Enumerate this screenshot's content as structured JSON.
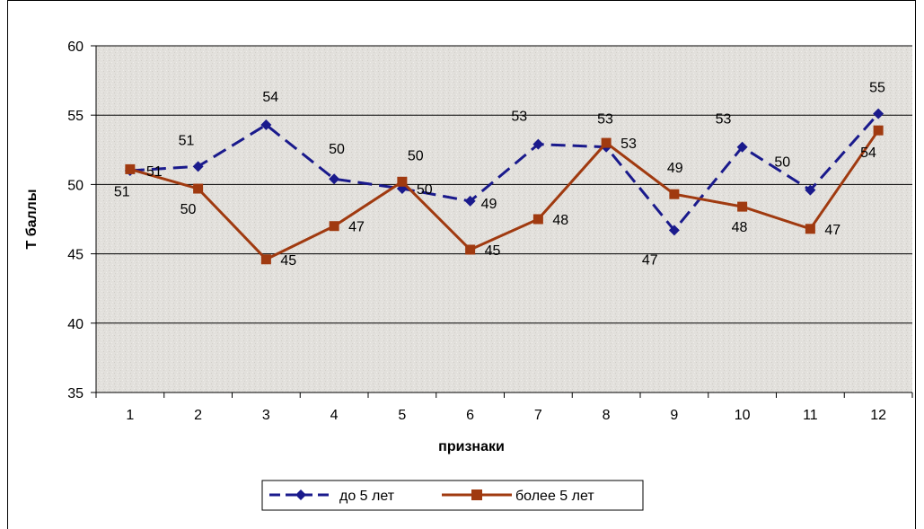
{
  "chart_data": {
    "type": "line",
    "categories": [
      "1",
      "2",
      "3",
      "4",
      "5",
      "6",
      "7",
      "8",
      "9",
      "10",
      "11",
      "12"
    ],
    "xlabel": "признаки",
    "ylabel": "Т баллы",
    "ylim": [
      35,
      60
    ],
    "yticks": [
      "35",
      "40",
      "45",
      "50",
      "55",
      "60"
    ],
    "grid": true,
    "legend_position": "bottom",
    "series": [
      {
        "name": "до 5 лет",
        "color": "#1a1a8c",
        "dash": true,
        "marker": "diamond",
        "values": [
          51,
          51.3,
          54.3,
          50.4,
          49.7,
          48.8,
          52.9,
          52.7,
          46.7,
          52.7,
          49.6,
          55.1
        ],
        "labels": [
          "51",
          "51",
          "54",
          "50",
          "50",
          "49",
          "53",
          "53",
          "47",
          "53",
          "50",
          "55"
        ]
      },
      {
        "name": "более 5 лет",
        "color": "#a03a10",
        "dash": false,
        "marker": "square",
        "values": [
          51.1,
          49.7,
          44.6,
          47.0,
          50.2,
          45.3,
          47.5,
          53.0,
          49.3,
          48.4,
          46.8,
          53.9
        ],
        "labels": [
          "51",
          "50",
          "45",
          "47",
          "50",
          "45",
          "48",
          "53",
          "49",
          "48",
          "47",
          "54"
        ]
      }
    ]
  }
}
